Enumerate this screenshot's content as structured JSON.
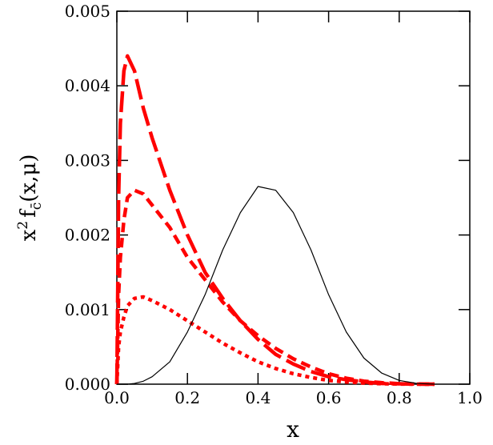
{
  "chart_data": {
    "type": "line",
    "xlabel": "x",
    "ylabel": [
      "x",
      "2",
      "f",
      "c̄",
      "(x,μ)"
    ],
    "x": [
      0,
      0.005,
      0.01,
      0.02,
      0.03,
      0.05,
      0.075,
      0.1,
      0.15,
      0.2,
      0.25,
      0.3,
      0.35,
      0.4,
      0.45,
      0.5,
      0.55,
      0.6,
      0.65,
      0.7,
      0.75,
      0.8,
      0.85,
      0.9
    ],
    "series": [
      {
        "color": "#ff0000",
        "dash": "long",
        "values": [
          0,
          0.0025,
          0.0035,
          0.0042,
          0.0044,
          0.0042,
          0.0037,
          0.0033,
          0.0026,
          0.002,
          0.0015,
          0.00115,
          0.00085,
          0.0006,
          0.0004,
          0.00027,
          0.00017,
          0.0001,
          6e-05,
          3e-05,
          1e-05,
          5e-06,
          1e-06,
          0
        ]
      },
      {
        "color": "#ff0000",
        "dash": "short",
        "values": [
          0,
          0.0012,
          0.0017,
          0.0022,
          0.0025,
          0.0026,
          0.00255,
          0.0024,
          0.0021,
          0.0017,
          0.0014,
          0.0011,
          0.00085,
          0.00065,
          0.00048,
          0.00034,
          0.00023,
          0.00014,
          8e-05,
          4e-05,
          2e-05,
          7e-06,
          2e-06,
          0
        ]
      },
      {
        "color": "#ff0000",
        "dash": "dot",
        "values": [
          0,
          0.0005,
          0.0007,
          0.0009,
          0.00105,
          0.00115,
          0.00117,
          0.00112,
          0.001,
          0.00085,
          0.0007,
          0.00055,
          0.00042,
          0.0003,
          0.00021,
          0.00014,
          9e-05,
          5e-05,
          3e-05,
          1.5e-05,
          6e-06,
          2e-06,
          0,
          0
        ]
      },
      {
        "color": "#000000",
        "dash": "solid",
        "values": [
          0,
          0,
          0,
          0,
          0,
          1e-05,
          4e-05,
          0.0001,
          0.0003,
          0.0007,
          0.0012,
          0.0018,
          0.0023,
          0.00265,
          0.0026,
          0.0023,
          0.0018,
          0.0012,
          0.0007,
          0.00035,
          0.00015,
          5e-05,
          1e-05,
          0
        ]
      }
    ],
    "xlim": [
      0,
      1
    ],
    "ylim": [
      0,
      0.005
    ],
    "xticks": [
      {
        "value": 0,
        "label": "0.0"
      },
      {
        "value": 0.2,
        "label": "0.2"
      },
      {
        "value": 0.4,
        "label": "0.4"
      },
      {
        "value": 0.6,
        "label": "0.6"
      },
      {
        "value": 0.8,
        "label": "0.8"
      },
      {
        "value": 1,
        "label": "1.0"
      }
    ],
    "yticks": [
      {
        "value": 0,
        "label": "0.000"
      },
      {
        "value": 0.001,
        "label": "0.001"
      },
      {
        "value": 0.002,
        "label": "0.002"
      },
      {
        "value": 0.003,
        "label": "0.003"
      },
      {
        "value": 0.004,
        "label": "0.004"
      },
      {
        "value": 0.005,
        "label": "0.005"
      }
    ]
  }
}
